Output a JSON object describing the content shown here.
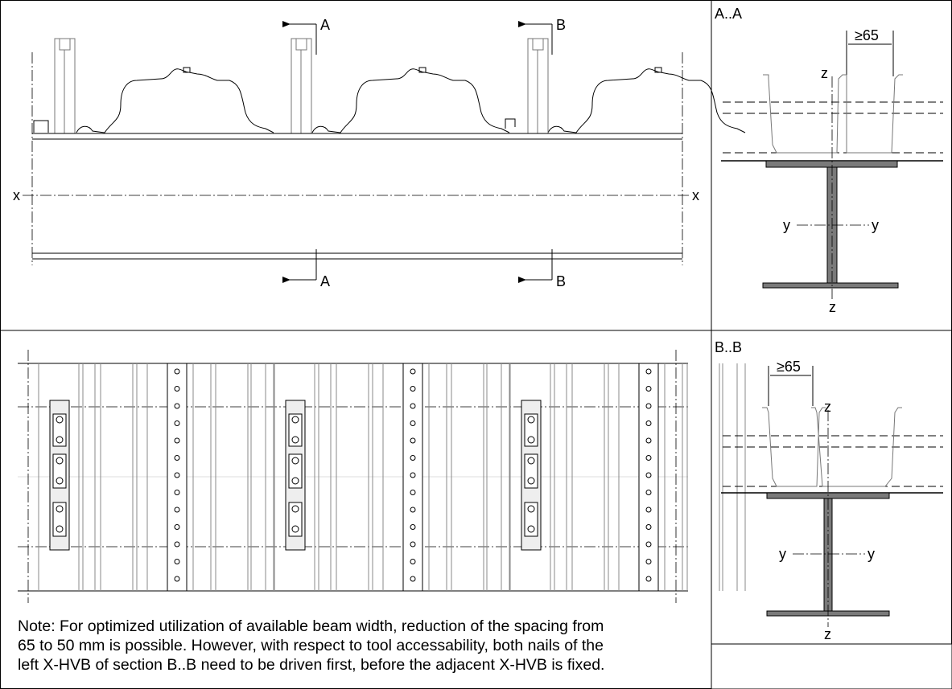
{
  "elevation": {
    "section_cuts": [
      "A",
      "B",
      "A",
      "B"
    ],
    "axis_labels": [
      "x",
      "x"
    ]
  },
  "section_a": {
    "title": "A..A",
    "dimension": "≥65",
    "axis_labels": [
      "z",
      "z",
      "y",
      "y"
    ]
  },
  "section_b": {
    "title": "B..B",
    "dimension": "≥65",
    "axis_labels": [
      "z",
      "z",
      "y",
      "y"
    ]
  },
  "note": {
    "lines": [
      "Note: For optimized utilization of available beam width, reduction of the spacing from",
      "65 to 50 mm is possible. However, with respect to tool accessability, both nails of the",
      "left X-HVB of section B..B need to be driven first, before the adjacent X-HVB is fixed."
    ]
  }
}
